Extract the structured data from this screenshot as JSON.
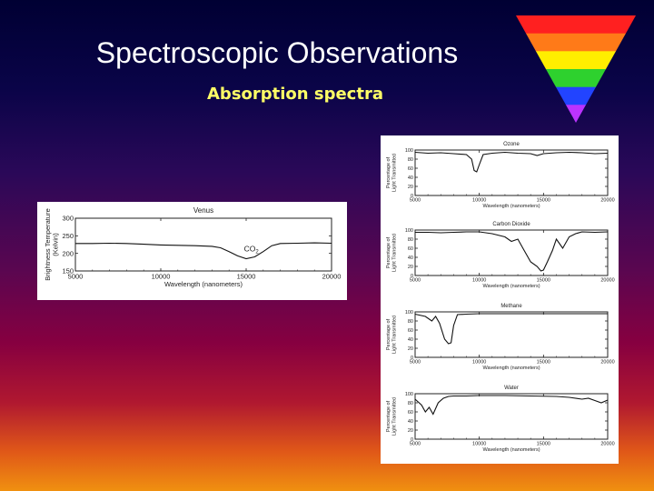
{
  "slide": {
    "title": "Spectroscopic Observations",
    "subtitle": "Absorption spectra"
  },
  "spectrum_icon": {
    "band_colors": [
      "#ff2020",
      "#ff7a18",
      "#ffee00",
      "#2ed12e",
      "#2244ff",
      "#bb33ff"
    ]
  },
  "chart_data": [
    {
      "type": "line",
      "title": "Venus",
      "xlabel": "Wavelength (nanometers)",
      "ylabel": "Brightness Temperature (Kelvin)",
      "xlim": [
        5000,
        20000
      ],
      "ylim": [
        150,
        300
      ],
      "xticks": [
        5000,
        10000,
        15000,
        20000
      ],
      "yticks": [
        150,
        200,
        250,
        300
      ],
      "annotation": "CO2",
      "series": [
        {
          "x": [
            5000,
            6000,
            7000,
            8000,
            9000,
            10000,
            11000,
            12000,
            13000,
            13500,
            14000,
            14500,
            15000,
            15500,
            16000,
            16500,
            17000,
            18000,
            19000,
            20000
          ],
          "y": [
            228,
            228,
            229,
            228,
            226,
            224,
            223,
            222,
            220,
            216,
            205,
            193,
            185,
            190,
            205,
            222,
            228,
            229,
            230,
            229
          ]
        }
      ]
    },
    {
      "type": "line",
      "title": "Ozone",
      "xlabel": "Wavelength (nanometers)",
      "ylabel": "Percentage of Light Transmitted",
      "xlim": [
        5000,
        20000
      ],
      "ylim": [
        0,
        100
      ],
      "xticks": [
        5000,
        10000,
        15000,
        20000
      ],
      "yticks": [
        0,
        20,
        40,
        60,
        80,
        100
      ],
      "series": [
        {
          "x": [
            5000,
            6000,
            7000,
            8000,
            9000,
            9400,
            9600,
            9800,
            10000,
            10300,
            11000,
            12000,
            13000,
            14000,
            14500,
            15000,
            16000,
            17000,
            18000,
            19000,
            20000
          ],
          "y": [
            95,
            93,
            94,
            92,
            90,
            80,
            55,
            52,
            68,
            90,
            93,
            95,
            93,
            92,
            88,
            92,
            94,
            95,
            94,
            92,
            93
          ]
        }
      ]
    },
    {
      "type": "line",
      "title": "Carbon Dioxide",
      "xlabel": "Wavelength (nanometers)",
      "ylabel": "Percentage of Light Transmitted",
      "xlim": [
        5000,
        20000
      ],
      "ylim": [
        0,
        100
      ],
      "xticks": [
        5000,
        10000,
        15000,
        20000
      ],
      "yticks": [
        0,
        20,
        40,
        60,
        80,
        100
      ],
      "series": [
        {
          "x": [
            5000,
            6000,
            7000,
            8000,
            9000,
            10000,
            11000,
            12000,
            12500,
            13000,
            13500,
            14000,
            14500,
            14800,
            15000,
            15300,
            15700,
            16000,
            16500,
            17000,
            17500,
            18000,
            19000,
            20000
          ],
          "y": [
            95,
            95,
            94,
            95,
            96,
            96,
            92,
            85,
            75,
            80,
            55,
            30,
            20,
            10,
            12,
            30,
            55,
            80,
            60,
            85,
            92,
            96,
            95,
            96
          ]
        }
      ]
    },
    {
      "type": "line",
      "title": "Methane",
      "xlabel": "Wavelength (nanometers)",
      "ylabel": "Percentage of Light Transmitted",
      "xlim": [
        5000,
        20000
      ],
      "ylim": [
        0,
        100
      ],
      "xticks": [
        5000,
        10000,
        15000,
        20000
      ],
      "yticks": [
        0,
        20,
        40,
        60,
        80,
        100
      ],
      "series": [
        {
          "x": [
            5000,
            5800,
            6300,
            6600,
            6900,
            7300,
            7600,
            7800,
            8000,
            8300,
            9000,
            10000,
            12000,
            14000,
            16000,
            18000,
            20000
          ],
          "y": [
            95,
            90,
            80,
            90,
            75,
            40,
            30,
            32,
            70,
            94,
            95,
            96,
            96,
            96,
            96,
            96,
            96
          ]
        }
      ]
    },
    {
      "type": "line",
      "title": "Water",
      "xlabel": "Wavelength (nanometers)",
      "ylabel": "Percentage of Light Transmitted",
      "xlim": [
        5000,
        20000
      ],
      "ylim": [
        0,
        100
      ],
      "xticks": [
        5000,
        10000,
        15000,
        20000
      ],
      "yticks": [
        0,
        20,
        40,
        60,
        80,
        100
      ],
      "series": [
        {
          "x": [
            5000,
            5500,
            5800,
            6100,
            6400,
            6800,
            7200,
            7600,
            8000,
            9000,
            10000,
            12000,
            14000,
            16000,
            17000,
            18000,
            18500,
            19000,
            19500,
            20000
          ],
          "y": [
            88,
            75,
            60,
            70,
            55,
            80,
            90,
            94,
            95,
            95,
            96,
            96,
            95,
            94,
            92,
            88,
            90,
            85,
            80,
            86
          ]
        }
      ]
    }
  ]
}
